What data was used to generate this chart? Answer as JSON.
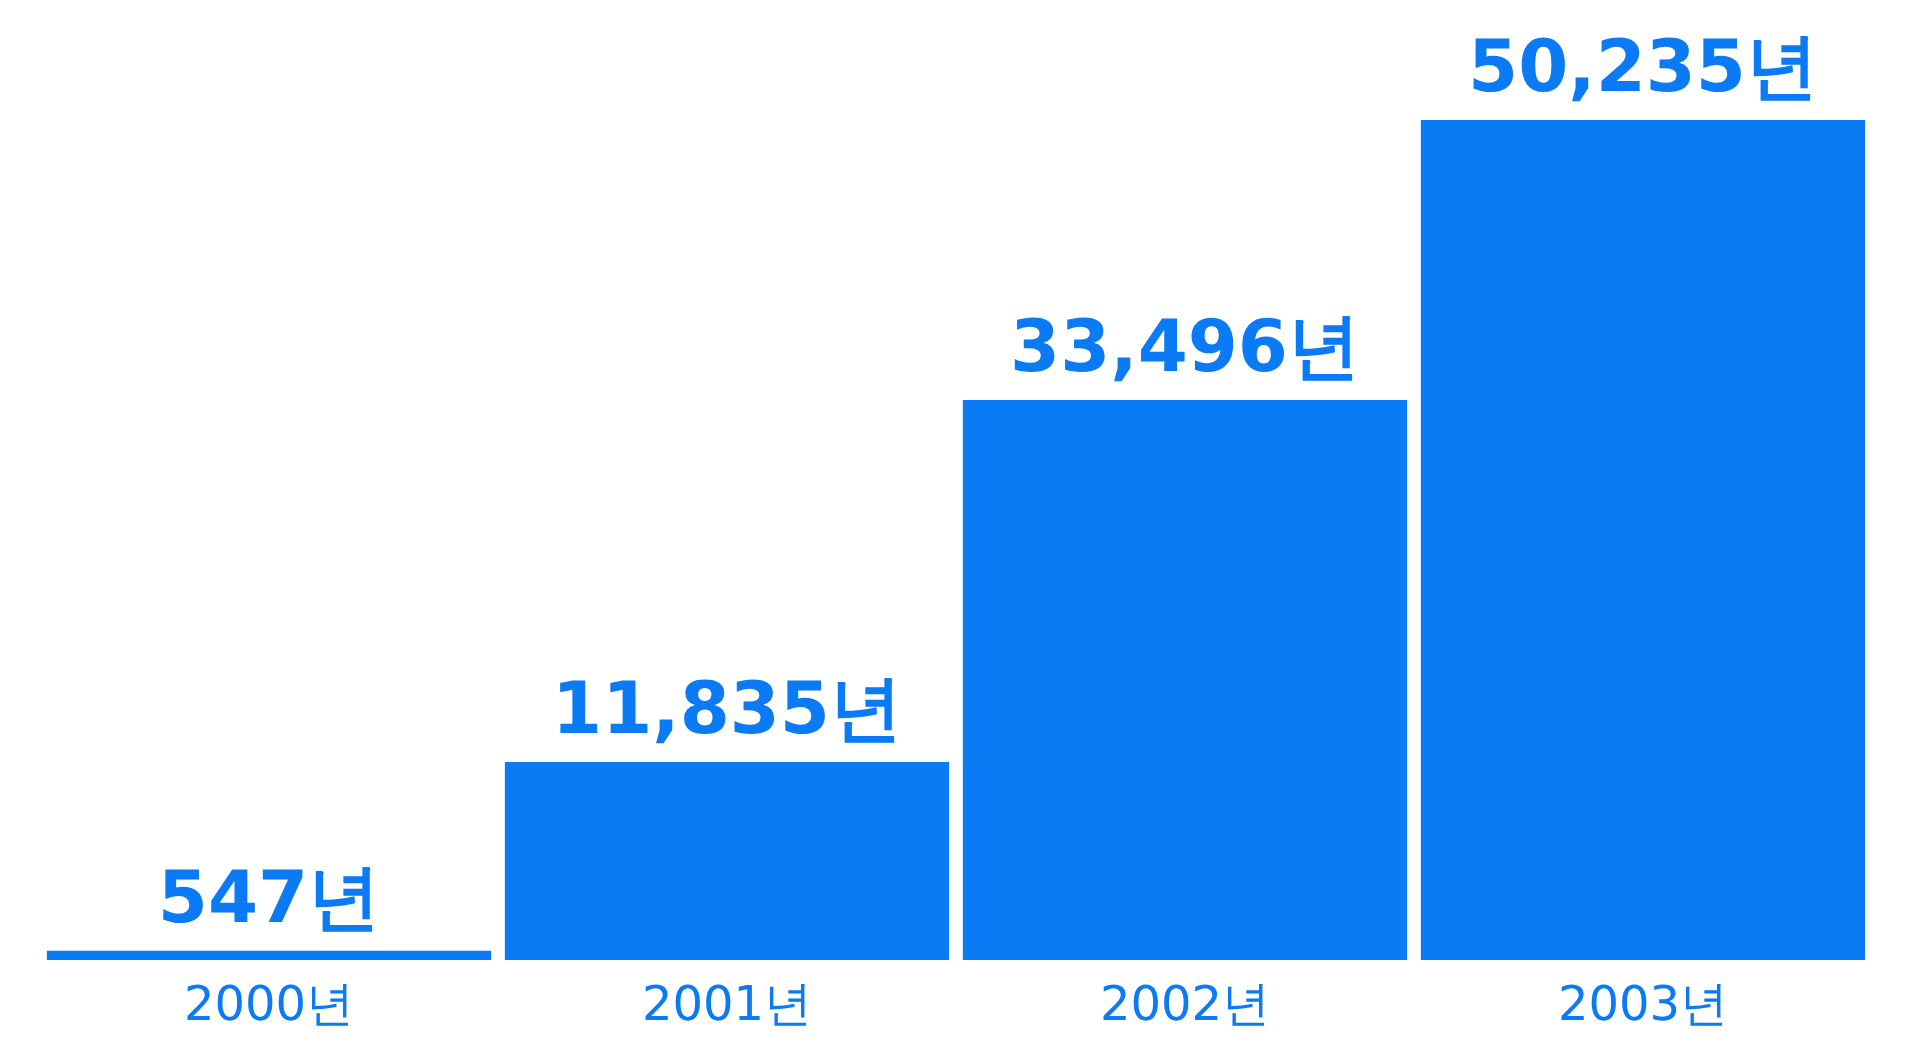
{
  "chart_data": {
    "type": "bar",
    "categories": [
      "2000년",
      "2001년",
      "2002년",
      "2003년"
    ],
    "values": [
      547,
      11835,
      33496,
      50235
    ],
    "value_labels": [
      "547년",
      "11,835년",
      "33,496년",
      "50,235년"
    ],
    "color": "#0a7af5"
  }
}
